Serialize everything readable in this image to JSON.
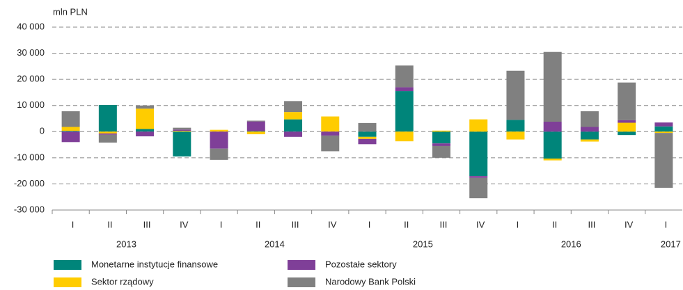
{
  "chart_data": {
    "type": "stacked_bar",
    "y_label": "mln PLN",
    "categories": [
      "I",
      "II",
      "III",
      "IV",
      "I",
      "II",
      "III",
      "IV",
      "I",
      "II",
      "III",
      "IV",
      "I",
      "II",
      "III",
      "IV",
      "I"
    ],
    "x_groups": [
      {
        "label": "2013",
        "count": 4
      },
      {
        "label": "2014",
        "count": 4
      },
      {
        "label": "2015",
        "count": 4
      },
      {
        "label": "2016",
        "count": 4
      },
      {
        "label": "2017",
        "count": 1
      }
    ],
    "series": [
      {
        "name": "Monetarne instytucje finansowe",
        "color": "#00857a",
        "values": [
          300,
          10200,
          1000,
          -9500,
          0,
          200,
          4700,
          0,
          -2000,
          15500,
          -4500,
          -17000,
          4500,
          -10300,
          -3000,
          -1300,
          2000
        ]
      },
      {
        "name": "Sektor rządowy",
        "color": "#ffcc00",
        "values": [
          1500,
          -700,
          7800,
          300,
          700,
          -1000,
          2800,
          5800,
          -800,
          -3700,
          400,
          4700,
          -3000,
          -700,
          -800,
          3400,
          -500
        ]
      },
      {
        "name": "Pozostałe sektory",
        "color": "#7f3f98",
        "values": [
          -4000,
          -500,
          -1800,
          500,
          -6500,
          3700,
          -2000,
          -1500,
          -2000,
          1500,
          -1000,
          -700,
          0,
          3800,
          1800,
          1000,
          1500
        ]
      },
      {
        "name": "Narodowy Bank Polski",
        "color": "#808080",
        "values": [
          6000,
          -3000,
          1200,
          700,
          -4300,
          300,
          4200,
          -6000,
          3300,
          8300,
          -4500,
          -7800,
          18800,
          26700,
          6000,
          14400,
          -21000
        ]
      }
    ],
    "ylim": [
      -30000,
      40000
    ],
    "yticks": [
      {
        "value": -30000,
        "label": "-30 000"
      },
      {
        "value": -20000,
        "label": "-20 000"
      },
      {
        "value": -10000,
        "label": "-10 000"
      },
      0,
      {
        "value": 10000,
        "label": "10 000"
      },
      {
        "value": 20000,
        "label": "20 000"
      },
      {
        "value": 30000,
        "label": "30 000"
      },
      {
        "value": 40000,
        "label": "40 000"
      }
    ],
    "grid": true
  }
}
